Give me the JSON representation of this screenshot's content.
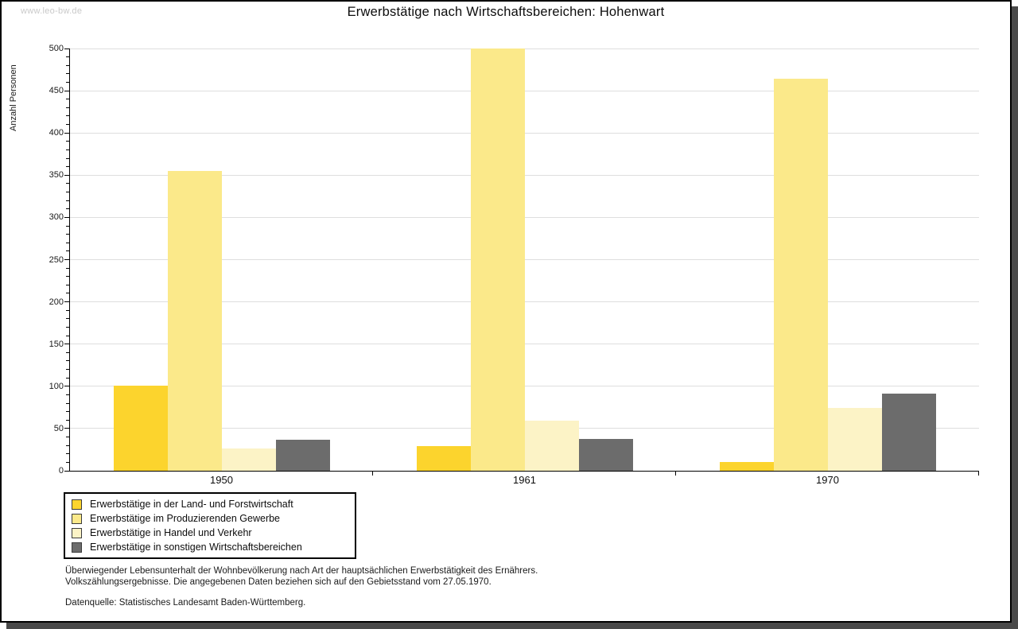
{
  "watermark": "www.leo-bw.de",
  "chart_data": {
    "type": "bar",
    "title": "Erwerbstätige nach Wirtschaftsbereichen: Hohenwart",
    "xlabel": "",
    "ylabel": "Anzahl Personen",
    "categories": [
      "1950",
      "1961",
      "1970"
    ],
    "series": [
      {
        "name": "Erwerbstätige in der Land- und Forstwirtschaft",
        "color": "#fcd42d",
        "values": [
          101,
          29,
          10
        ]
      },
      {
        "name": "Erwerbstätige im Produzierenden Gewerbe",
        "color": "#fbe98a",
        "values": [
          355,
          500,
          464
        ]
      },
      {
        "name": "Erwerbstätige in Handel und Verkehr",
        "color": "#fcf3c6",
        "values": [
          26,
          59,
          74
        ]
      },
      {
        "name": "Erwerbstätige in sonstigen Wirtschaftsbereichen",
        "color": "#6c6c6c",
        "values": [
          37,
          38,
          91
        ]
      }
    ],
    "ylim": [
      0,
      500
    ],
    "ytick_step": 50,
    "yminor_step": 10,
    "grid": true,
    "legend_position": "bottom-left"
  },
  "footnotes": [
    "Überwiegender Lebensunterhalt der Wohnbevölkerung nach Art der hauptsächlichen Erwerbstätigkeit des Ernährers.",
    "Volkszählungsergebnisse. Die angegebenen Daten beziehen sich auf den Gebietsstand vom 27.05.1970.",
    "Datenquelle: Statistisches Landesamt Baden-Württemberg."
  ],
  "colors": {
    "grid": "#dedede",
    "axis": "#000000",
    "shadow": "#4a4a4a",
    "watermark": "#c9c9c9",
    "background": "#ffffff"
  }
}
